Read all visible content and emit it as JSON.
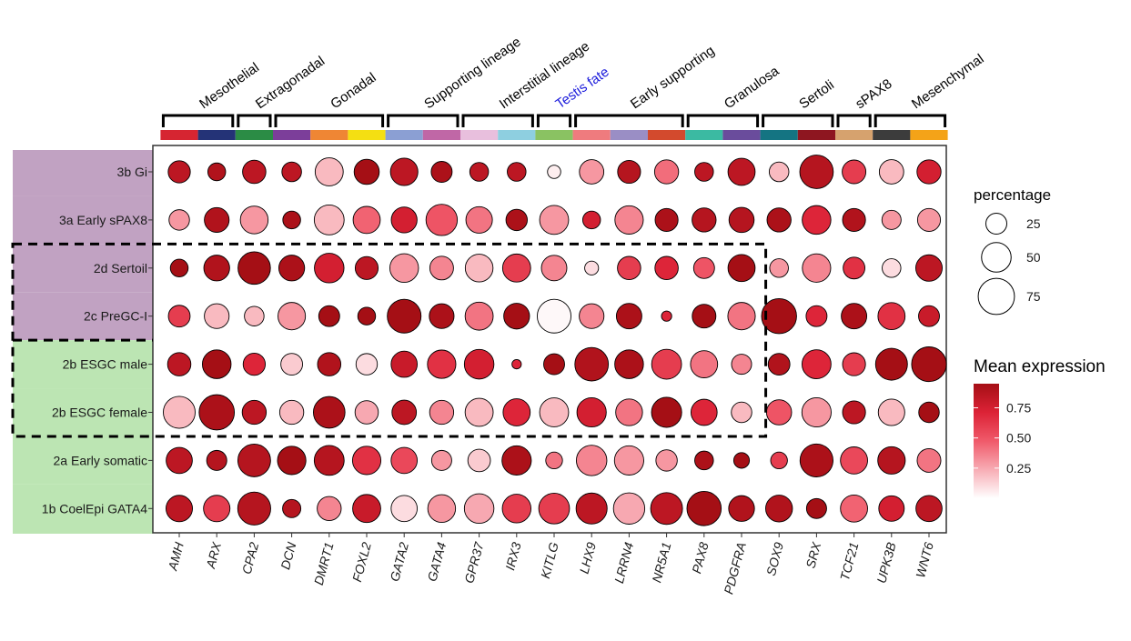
{
  "chart_data": {
    "type": "dotplot",
    "genes": [
      "AMH",
      "ARX",
      "CPA2",
      "DCN",
      "DMRT1",
      "FOXL2",
      "GATA2",
      "GATA4",
      "GPR37",
      "IRX3",
      "KITLG",
      "LHX9",
      "LRRN4",
      "NR5A1",
      "PAX8",
      "PDGFRA",
      "SOX9",
      "SRX",
      "TCF21",
      "UPK3B",
      "WNT6"
    ],
    "gene_colors": [
      "#d62531",
      "#243377",
      "#2b8c45",
      "#7c3e9a",
      "#ef8634",
      "#f4df12",
      "#8b9fd3",
      "#c067a6",
      "#e8bfdd",
      "#8ecfe0",
      "#8ac262",
      "#ef7b7e",
      "#9a8ec5",
      "#d34a2d",
      "#3bbaa2",
      "#6a4c9c",
      "#147482",
      "#8e1620",
      "#d6a26e",
      "#3c3c3c",
      "#f4a318"
    ],
    "groups": [
      {
        "label": "Mesothelial",
        "from": 0,
        "to": 1,
        "color": "#000000"
      },
      {
        "label": "Extragonadal",
        "from": 2,
        "to": 2,
        "color": "#000000"
      },
      {
        "label": "Gonadal",
        "from": 3,
        "to": 5,
        "color": "#000000"
      },
      {
        "label": "Supporting lineage",
        "from": 6,
        "to": 7,
        "color": "#000000"
      },
      {
        "label": "Interstitial lineage",
        "from": 8,
        "to": 9,
        "color": "#000000"
      },
      {
        "label": "Testis fate",
        "from": 10,
        "to": 10,
        "color": "#1a1adb"
      },
      {
        "label": "Early supporting",
        "from": 11,
        "to": 13,
        "color": "#000000"
      },
      {
        "label": "Granulosa",
        "from": 14,
        "to": 15,
        "color": "#000000"
      },
      {
        "label": "Sertoli",
        "from": 16,
        "to": 17,
        "color": "#000000"
      },
      {
        "label": "sPAX8",
        "from": 18,
        "to": 18,
        "color": "#000000"
      },
      {
        "label": "Mesenchymal",
        "from": 19,
        "to": 20,
        "color": "#000000"
      }
    ],
    "rows": [
      {
        "label": "3b Gi",
        "band_color": "#c1a2c2"
      },
      {
        "label": "3a Early sPAX8",
        "band_color": "#c1a2c2"
      },
      {
        "label": "2d Sertoil",
        "band_color": "#c1a2c2"
      },
      {
        "label": "2c PreGC-I",
        "band_color": "#c1a2c2"
      },
      {
        "label": "2b ESGC male",
        "band_color": "#bce5b3"
      },
      {
        "label": "2b ESGC female",
        "band_color": "#bce5b3"
      },
      {
        "label": "2a Early somatic",
        "band_color": "#bce5b3"
      },
      {
        "label": "1b CoelEpi GATA4",
        "band_color": "#bce5b3"
      }
    ],
    "percentage": [
      [
        28,
        18,
        31,
        22,
        45,
        36,
        43,
        25,
        20,
        20,
        10,
        34,
        30,
        33,
        20,
        42,
        22,
        64,
        32,
        34,
        33
      ],
      [
        24,
        35,
        44,
        18,
        51,
        42,
        38,
        56,
        40,
        26,
        48,
        18,
        46,
        30,
        33,
        36,
        33,
        47,
        30,
        21,
        30
      ],
      [
        18,
        38,
        60,
        38,
        50,
        30,
        47,
        32,
        44,
        45,
        37,
        11,
        31,
        31,
        25,
        42,
        20,
        46,
        27,
        20,
        40
      ],
      [
        27,
        35,
        22,
        43,
        25,
        18,
        65,
        35,
        45,
        38,
        65,
        35,
        37,
        6,
        32,
        43,
        70,
        25,
        37,
        42,
        25
      ],
      [
        31,
        47,
        28,
        27,
        31,
        26,
        39,
        46,
        50,
        5,
        25,
        64,
        47,
        51,
        42,
        23,
        27,
        48,
        30,
        58,
        69
      ],
      [
        58,
        71,
        33,
        33,
        57,
        31,
        34,
        33,
        45,
        42,
        48,
        49,
        41,
        52,
        39,
        24,
        36,
        49,
        30,
        40,
        24
      ],
      [
        39,
        23,
        61,
        46,
        51,
        46,
        39,
        23,
        29,
        49,
        16,
        53,
        49,
        26,
        20,
        14,
        16,
        62,
        42,
        43,
        32
      ],
      [
        40,
        40,
        62,
        19,
        33,
        45,
        39,
        44,
        50,
        47,
        54,
        55,
        56,
        58,
        67,
        38,
        41,
        23,
        42,
        37,
        39
      ]
    ],
    "expression": [
      [
        0.85,
        0.9,
        0.85,
        0.85,
        0.2,
        0.98,
        0.85,
        0.92,
        0.85,
        0.85,
        0.05,
        0.3,
        0.88,
        0.42,
        0.85,
        0.85,
        0.2,
        0.88,
        0.6,
        0.2,
        0.75
      ],
      [
        0.3,
        0.9,
        0.3,
        0.92,
        0.2,
        0.45,
        0.75,
        0.5,
        0.4,
        0.92,
        0.3,
        0.75,
        0.35,
        0.92,
        0.88,
        0.88,
        0.92,
        0.7,
        0.9,
        0.3,
        0.3
      ],
      [
        0.95,
        0.9,
        0.98,
        0.92,
        0.75,
        0.85,
        0.3,
        0.35,
        0.2,
        0.6,
        0.35,
        0.1,
        0.6,
        0.7,
        0.5,
        0.95,
        0.3,
        0.35,
        0.65,
        0.1,
        0.85
      ],
      [
        0.6,
        0.2,
        0.2,
        0.3,
        0.95,
        0.95,
        0.98,
        0.92,
        0.4,
        0.95,
        0.02,
        0.35,
        0.92,
        0.7,
        0.95,
        0.4,
        0.98,
        0.7,
        0.92,
        0.65,
        0.8
      ],
      [
        0.85,
        0.95,
        0.7,
        0.15,
        0.9,
        0.1,
        0.8,
        0.65,
        0.75,
        0.7,
        0.95,
        0.9,
        0.92,
        0.6,
        0.4,
        0.35,
        0.9,
        0.7,
        0.6,
        0.98,
        0.98
      ],
      [
        0.2,
        0.92,
        0.85,
        0.2,
        0.92,
        0.25,
        0.85,
        0.35,
        0.2,
        0.7,
        0.2,
        0.75,
        0.4,
        0.98,
        0.7,
        0.2,
        0.5,
        0.3,
        0.85,
        0.2,
        0.95
      ],
      [
        0.85,
        0.88,
        0.88,
        0.98,
        0.88,
        0.65,
        0.55,
        0.3,
        0.15,
        0.92,
        0.4,
        0.35,
        0.3,
        0.3,
        0.92,
        0.95,
        0.6,
        0.92,
        0.55,
        0.88,
        0.4
      ],
      [
        0.85,
        0.6,
        0.88,
        0.88,
        0.35,
        0.8,
        0.1,
        0.3,
        0.25,
        0.6,
        0.6,
        0.85,
        0.25,
        0.85,
        0.98,
        0.9,
        0.9,
        0.95,
        0.45,
        0.75,
        0.85
      ]
    ],
    "highlight_boxes": [
      {
        "row_from": 2,
        "row_to": 5,
        "col_from": 0,
        "col_to": 15,
        "style": "dashed"
      }
    ],
    "legend_size": {
      "title": "percentage",
      "values": [
        25,
        50,
        75
      ]
    },
    "legend_color": {
      "title": "Mean expression",
      "ticks": [
        0.25,
        0.5,
        0.75
      ],
      "range": [
        0,
        0.95
      ],
      "low_color": "#ffffff",
      "mid_color": "#e8283e",
      "high_color": "#a50f15"
    }
  }
}
